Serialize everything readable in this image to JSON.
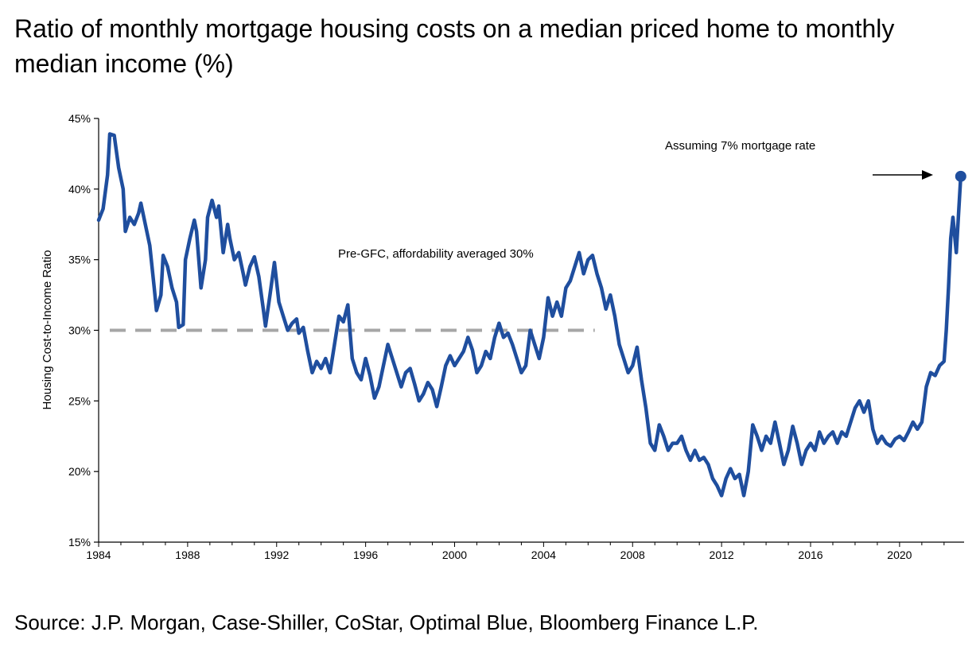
{
  "title": "Ratio of monthly mortgage housing costs on a median priced home to monthly median income (%)",
  "source": "Source: J.P. Morgan, Case-Shiller, CoStar, Optimal Blue, Bloomberg Finance L.P.",
  "chart_data": {
    "type": "line",
    "title": "Ratio of monthly mortgage housing costs on a median priced home to monthly median income (%)",
    "xlabel": "",
    "ylabel": "Housing Cost-to-Income Ratio",
    "xlim": [
      1984,
      2022.9
    ],
    "ylim": [
      15,
      45
    ],
    "x_ticks": [
      "1984",
      "1988",
      "1992",
      "1996",
      "2000",
      "2004",
      "2008",
      "2012",
      "2016",
      "2020"
    ],
    "y_ticks": [
      "15%",
      "20%",
      "25%",
      "30%",
      "35%",
      "40%",
      "45%"
    ],
    "y_tick_values": [
      15,
      20,
      25,
      30,
      35,
      40,
      45
    ],
    "grid": false,
    "colors": {
      "line": "#1F4E9E",
      "reference": "#A6A6A6",
      "axis": "#000000"
    },
    "annotations": {
      "pre_gfc": "Pre-GFC, affordability averaged 30%",
      "assumption": "Assuming 7% mortgage rate"
    },
    "reference_line": {
      "y": 30,
      "x_start": 1984.5,
      "x_end": 2006.3
    },
    "highlight_point": {
      "x": 2022.75,
      "y": 40.9
    },
    "series": [
      {
        "points": [
          [
            1984.0,
            37.8
          ],
          [
            1984.2,
            38.6
          ],
          [
            1984.4,
            41.0
          ],
          [
            1984.5,
            43.9
          ],
          [
            1984.7,
            43.8
          ],
          [
            1984.9,
            41.5
          ],
          [
            1985.1,
            40.0
          ],
          [
            1985.2,
            37.0
          ],
          [
            1985.4,
            38.0
          ],
          [
            1985.6,
            37.5
          ],
          [
            1985.8,
            38.3
          ],
          [
            1985.9,
            39.0
          ],
          [
            1986.1,
            37.5
          ],
          [
            1986.3,
            36.0
          ],
          [
            1986.5,
            33.0
          ],
          [
            1986.6,
            31.4
          ],
          [
            1986.8,
            32.5
          ],
          [
            1986.9,
            35.3
          ],
          [
            1987.1,
            34.5
          ],
          [
            1987.3,
            33.0
          ],
          [
            1987.5,
            32.0
          ],
          [
            1987.6,
            30.2
          ],
          [
            1987.8,
            30.4
          ],
          [
            1987.9,
            35.0
          ],
          [
            1988.1,
            36.5
          ],
          [
            1988.3,
            37.8
          ],
          [
            1988.4,
            37.0
          ],
          [
            1988.6,
            33.0
          ],
          [
            1988.8,
            35.0
          ],
          [
            1988.9,
            38.0
          ],
          [
            1989.1,
            39.2
          ],
          [
            1989.3,
            38.0
          ],
          [
            1989.4,
            38.8
          ],
          [
            1989.6,
            35.5
          ],
          [
            1989.8,
            37.5
          ],
          [
            1989.9,
            36.5
          ],
          [
            1990.1,
            35.0
          ],
          [
            1990.3,
            35.5
          ],
          [
            1990.5,
            34.0
          ],
          [
            1990.6,
            33.2
          ],
          [
            1990.8,
            34.5
          ],
          [
            1991.0,
            35.2
          ],
          [
            1991.2,
            33.8
          ],
          [
            1991.4,
            31.5
          ],
          [
            1991.5,
            30.3
          ],
          [
            1991.7,
            32.5
          ],
          [
            1991.9,
            34.8
          ],
          [
            1992.1,
            32.0
          ],
          [
            1992.3,
            31.0
          ],
          [
            1992.5,
            30.0
          ],
          [
            1992.7,
            30.5
          ],
          [
            1992.9,
            30.8
          ],
          [
            1993.0,
            29.8
          ],
          [
            1993.2,
            30.2
          ],
          [
            1993.4,
            28.5
          ],
          [
            1993.6,
            27.0
          ],
          [
            1993.8,
            27.8
          ],
          [
            1994.0,
            27.3
          ],
          [
            1994.2,
            28.0
          ],
          [
            1994.4,
            27.0
          ],
          [
            1994.6,
            29.0
          ],
          [
            1994.8,
            31.0
          ],
          [
            1995.0,
            30.6
          ],
          [
            1995.2,
            31.8
          ],
          [
            1995.4,
            28.0
          ],
          [
            1995.6,
            27.0
          ],
          [
            1995.8,
            26.5
          ],
          [
            1996.0,
            28.0
          ],
          [
            1996.2,
            26.8
          ],
          [
            1996.4,
            25.2
          ],
          [
            1996.6,
            26.0
          ],
          [
            1996.8,
            27.5
          ],
          [
            1997.0,
            29.0
          ],
          [
            1997.2,
            28.0
          ],
          [
            1997.4,
            27.0
          ],
          [
            1997.6,
            26.0
          ],
          [
            1997.8,
            27.0
          ],
          [
            1998.0,
            27.3
          ],
          [
            1998.2,
            26.2
          ],
          [
            1998.4,
            25.0
          ],
          [
            1998.6,
            25.5
          ],
          [
            1998.8,
            26.3
          ],
          [
            1999.0,
            25.8
          ],
          [
            1999.2,
            24.6
          ],
          [
            1999.4,
            26.0
          ],
          [
            1999.6,
            27.5
          ],
          [
            1999.8,
            28.2
          ],
          [
            2000.0,
            27.5
          ],
          [
            2000.2,
            28.0
          ],
          [
            2000.4,
            28.5
          ],
          [
            2000.6,
            29.5
          ],
          [
            2000.8,
            28.6
          ],
          [
            2001.0,
            27.0
          ],
          [
            2001.2,
            27.5
          ],
          [
            2001.4,
            28.5
          ],
          [
            2001.6,
            28.0
          ],
          [
            2001.8,
            29.5
          ],
          [
            2002.0,
            30.5
          ],
          [
            2002.2,
            29.5
          ],
          [
            2002.4,
            29.8
          ],
          [
            2002.6,
            29.0
          ],
          [
            2002.8,
            28.0
          ],
          [
            2003.0,
            27.0
          ],
          [
            2003.2,
            27.5
          ],
          [
            2003.4,
            30.0
          ],
          [
            2003.6,
            29.0
          ],
          [
            2003.8,
            28.0
          ],
          [
            2004.0,
            29.5
          ],
          [
            2004.2,
            32.3
          ],
          [
            2004.4,
            31.0
          ],
          [
            2004.6,
            32.0
          ],
          [
            2004.8,
            31.0
          ],
          [
            2005.0,
            33.0
          ],
          [
            2005.2,
            33.5
          ],
          [
            2005.4,
            34.5
          ],
          [
            2005.6,
            35.5
          ],
          [
            2005.8,
            34.0
          ],
          [
            2006.0,
            35.0
          ],
          [
            2006.2,
            35.3
          ],
          [
            2006.4,
            34.0
          ],
          [
            2006.6,
            33.0
          ],
          [
            2006.8,
            31.5
          ],
          [
            2007.0,
            32.5
          ],
          [
            2007.2,
            31.0
          ],
          [
            2007.4,
            29.0
          ],
          [
            2007.6,
            28.0
          ],
          [
            2007.8,
            27.0
          ],
          [
            2008.0,
            27.5
          ],
          [
            2008.2,
            28.8
          ],
          [
            2008.4,
            26.5
          ],
          [
            2008.6,
            24.5
          ],
          [
            2008.8,
            22.0
          ],
          [
            2009.0,
            21.5
          ],
          [
            2009.2,
            23.3
          ],
          [
            2009.4,
            22.5
          ],
          [
            2009.6,
            21.5
          ],
          [
            2009.8,
            22.0
          ],
          [
            2010.0,
            22.0
          ],
          [
            2010.2,
            22.5
          ],
          [
            2010.4,
            21.5
          ],
          [
            2010.6,
            20.8
          ],
          [
            2010.8,
            21.5
          ],
          [
            2011.0,
            20.8
          ],
          [
            2011.2,
            21.0
          ],
          [
            2011.4,
            20.5
          ],
          [
            2011.6,
            19.5
          ],
          [
            2011.8,
            19.0
          ],
          [
            2012.0,
            18.3
          ],
          [
            2012.2,
            19.5
          ],
          [
            2012.4,
            20.2
          ],
          [
            2012.6,
            19.5
          ],
          [
            2012.8,
            19.8
          ],
          [
            2013.0,
            18.3
          ],
          [
            2013.2,
            20.0
          ],
          [
            2013.4,
            23.3
          ],
          [
            2013.6,
            22.5
          ],
          [
            2013.8,
            21.5
          ],
          [
            2014.0,
            22.5
          ],
          [
            2014.2,
            22.0
          ],
          [
            2014.4,
            23.5
          ],
          [
            2014.6,
            22.0
          ],
          [
            2014.8,
            20.5
          ],
          [
            2015.0,
            21.5
          ],
          [
            2015.2,
            23.2
          ],
          [
            2015.4,
            22.0
          ],
          [
            2015.6,
            20.5
          ],
          [
            2015.8,
            21.5
          ],
          [
            2016.0,
            22.0
          ],
          [
            2016.2,
            21.5
          ],
          [
            2016.4,
            22.8
          ],
          [
            2016.6,
            22.0
          ],
          [
            2016.8,
            22.5
          ],
          [
            2017.0,
            22.8
          ],
          [
            2017.2,
            22.0
          ],
          [
            2017.4,
            22.8
          ],
          [
            2017.6,
            22.5
          ],
          [
            2017.8,
            23.5
          ],
          [
            2018.0,
            24.5
          ],
          [
            2018.2,
            25.0
          ],
          [
            2018.4,
            24.2
          ],
          [
            2018.6,
            25.0
          ],
          [
            2018.8,
            23.0
          ],
          [
            2019.0,
            22.0
          ],
          [
            2019.2,
            22.5
          ],
          [
            2019.4,
            22.0
          ],
          [
            2019.6,
            21.8
          ],
          [
            2019.8,
            22.3
          ],
          [
            2020.0,
            22.5
          ],
          [
            2020.2,
            22.2
          ],
          [
            2020.4,
            22.8
          ],
          [
            2020.6,
            23.5
          ],
          [
            2020.8,
            23.0
          ],
          [
            2021.0,
            23.5
          ],
          [
            2021.2,
            26.0
          ],
          [
            2021.4,
            27.0
          ],
          [
            2021.6,
            26.8
          ],
          [
            2021.8,
            27.5
          ],
          [
            2022.0,
            27.8
          ],
          [
            2022.1,
            30.0
          ],
          [
            2022.2,
            33.0
          ],
          [
            2022.3,
            36.5
          ],
          [
            2022.4,
            38.0
          ],
          [
            2022.55,
            35.5
          ],
          [
            2022.65,
            38.2
          ],
          [
            2022.75,
            40.9
          ]
        ]
      }
    ]
  }
}
